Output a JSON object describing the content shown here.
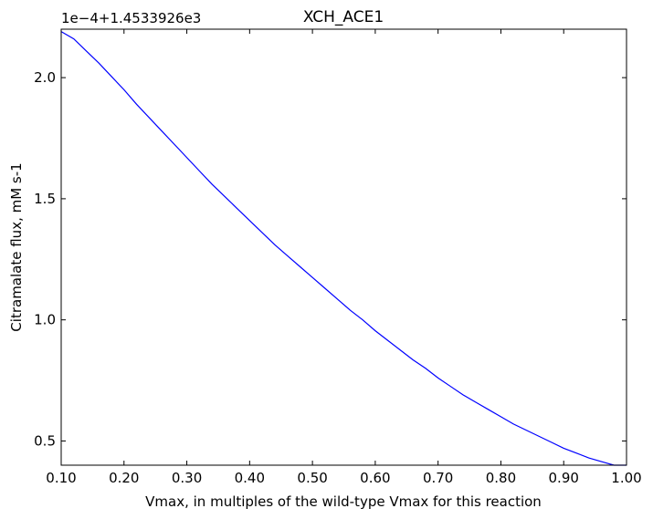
{
  "chart_data": {
    "type": "line",
    "title": "XCH_ACE1",
    "xlabel": "Vmax, in multiples of the wild-type Vmax for this reaction",
    "ylabel": "Citramalate flux, mM s-1",
    "offset_text": "1e−4+1.4533926e3",
    "xlim": [
      0.1,
      1.0
    ],
    "ylim": [
      0.4,
      2.2
    ],
    "xticks": [
      {
        "value": 0.1,
        "label": "0.10"
      },
      {
        "value": 0.2,
        "label": "0.20"
      },
      {
        "value": 0.3,
        "label": "0.30"
      },
      {
        "value": 0.4,
        "label": "0.40"
      },
      {
        "value": 0.5,
        "label": "0.50"
      },
      {
        "value": 0.6,
        "label": "0.60"
      },
      {
        "value": 0.7,
        "label": "0.70"
      },
      {
        "value": 0.8,
        "label": "0.80"
      },
      {
        "value": 0.9,
        "label": "0.90"
      },
      {
        "value": 1.0,
        "label": "1.00"
      }
    ],
    "yticks": [
      {
        "value": 0.5,
        "label": "0.5"
      },
      {
        "value": 1.0,
        "label": "1.0"
      },
      {
        "value": 1.5,
        "label": "1.5"
      },
      {
        "value": 2.0,
        "label": "2.0"
      }
    ],
    "grid": false,
    "series": [
      {
        "color": "#0000ff",
        "x": [
          0.1,
          0.12,
          0.14,
          0.16,
          0.18,
          0.2,
          0.22,
          0.24,
          0.26,
          0.28,
          0.3,
          0.32,
          0.34,
          0.36,
          0.38,
          0.4,
          0.42,
          0.44,
          0.46,
          0.48,
          0.5,
          0.52,
          0.54,
          0.56,
          0.58,
          0.6,
          0.62,
          0.64,
          0.66,
          0.68,
          0.7,
          0.72,
          0.74,
          0.76,
          0.78,
          0.8,
          0.82,
          0.84,
          0.86,
          0.88,
          0.9,
          0.92,
          0.94,
          0.96,
          0.98,
          1.0
        ],
        "y": [
          2.19,
          2.16,
          2.11,
          2.06,
          2.005,
          1.95,
          1.89,
          1.835,
          1.78,
          1.725,
          1.67,
          1.615,
          1.56,
          1.51,
          1.46,
          1.41,
          1.36,
          1.31,
          1.265,
          1.22,
          1.175,
          1.13,
          1.085,
          1.04,
          1.0,
          0.955,
          0.915,
          0.875,
          0.835,
          0.8,
          0.76,
          0.725,
          0.69,
          0.66,
          0.63,
          0.6,
          0.57,
          0.545,
          0.52,
          0.495,
          0.47,
          0.45,
          0.43,
          0.415,
          0.4,
          0.4
        ]
      }
    ]
  }
}
